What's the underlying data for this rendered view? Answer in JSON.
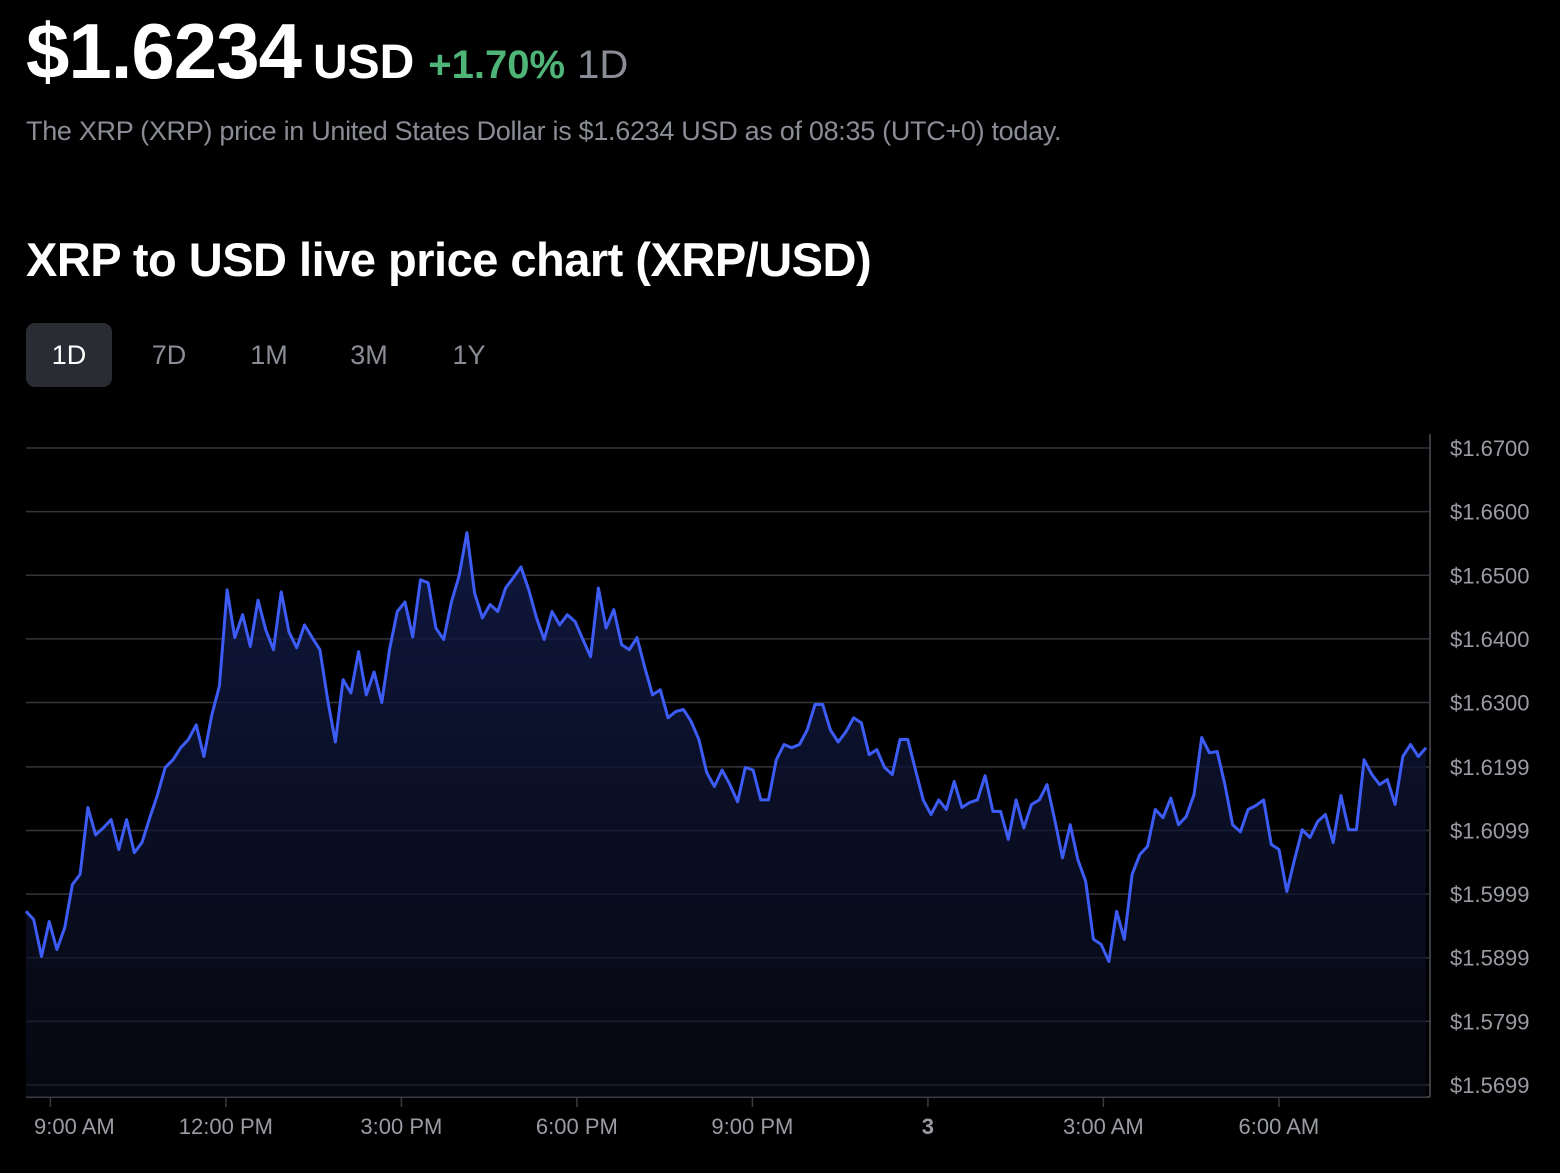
{
  "header": {
    "price": "$1.6234",
    "currency": "USD",
    "change": "+1.70%",
    "period": "1D",
    "description": "The XRP (XRP) price in United States Dollar is $1.6234 USD as of 08:35 (UTC+0) today."
  },
  "colors": {
    "accent_line": "#3d5cf5",
    "positive": "#4fb477",
    "muted": "#8a8d96"
  },
  "tabs": [
    {
      "label": "1D",
      "active": true
    },
    {
      "label": "7D",
      "active": false
    },
    {
      "label": "1M",
      "active": false
    },
    {
      "label": "3M",
      "active": false
    },
    {
      "label": "1Y",
      "active": false
    }
  ],
  "chart_data": {
    "type": "area",
    "title": "XRP to USD live price chart (XRP/USD)",
    "xlabel": "",
    "ylabel": "",
    "ylim": [
      1.5699,
      1.67
    ],
    "y_ticks": [
      "$1.6700",
      "$1.6600",
      "$1.6500",
      "$1.6400",
      "$1.6300",
      "$1.6199",
      "$1.6099",
      "$1.5999",
      "$1.5899",
      "$1.5799",
      "$1.5699"
    ],
    "y_tick_values": [
      1.67,
      1.66,
      1.65,
      1.64,
      1.63,
      1.6199,
      1.6099,
      1.5999,
      1.5899,
      1.5799,
      1.5699
    ],
    "x_ticks": [
      "9:00 AM",
      "12:00 PM",
      "3:00 PM",
      "6:00 PM",
      "9:00 PM",
      "3",
      "3:00 AM",
      "6:00 AM"
    ],
    "x_tick_hours": [
      9,
      12,
      15,
      18,
      21,
      24,
      27,
      30
    ],
    "x_range_hours": [
      8.583,
      32.583
    ],
    "grid": true,
    "series": [
      {
        "name": "XRP/USD",
        "values": [
          1.5972,
          1.5959,
          1.5901,
          1.5956,
          1.5912,
          1.5946,
          1.6014,
          1.603,
          1.6135,
          1.6092,
          1.6103,
          1.6116,
          1.6069,
          1.6116,
          1.6064,
          1.608,
          1.6119,
          1.6155,
          1.6198,
          1.621,
          1.6229,
          1.6242,
          1.6265,
          1.6215,
          1.6279,
          1.6326,
          1.6477,
          1.6402,
          1.6438,
          1.6388,
          1.6461,
          1.6414,
          1.6383,
          1.6474,
          1.6411,
          1.6386,
          1.6422,
          1.6402,
          1.6383,
          1.6304,
          1.6238,
          1.6336,
          1.6315,
          1.638,
          1.6312,
          1.6348,
          1.63,
          1.6383,
          1.6443,
          1.6458,
          1.6403,
          1.6493,
          1.6488,
          1.6417,
          1.6399,
          1.6458,
          1.6499,
          1.6567,
          1.6472,
          1.6433,
          1.6454,
          1.6443,
          1.648,
          1.6496,
          1.6513,
          1.6477,
          1.6433,
          1.6399,
          1.6443,
          1.6422,
          1.6438,
          1.6427,
          1.6399,
          1.6372,
          1.648,
          1.6417,
          1.6446,
          1.6391,
          1.6383,
          1.6402,
          1.6355,
          1.6312,
          1.632,
          1.6276,
          1.6286,
          1.6289,
          1.627,
          1.6242,
          1.619,
          1.6168,
          1.6194,
          1.6171,
          1.6144,
          1.6198,
          1.6194,
          1.6147,
          1.6147,
          1.621,
          1.6234,
          1.6229,
          1.6234,
          1.6257,
          1.6297,
          1.6297,
          1.6257,
          1.6238,
          1.6254,
          1.6276,
          1.6268,
          1.6218,
          1.6226,
          1.6198,
          1.6187,
          1.6242,
          1.6242,
          1.6194,
          1.6147,
          1.6124,
          1.6147,
          1.6132,
          1.6176,
          1.6135,
          1.6143,
          1.6147,
          1.6185,
          1.6129,
          1.6129,
          1.6085,
          1.6147,
          1.6103,
          1.614,
          1.6147,
          1.6171,
          1.6116,
          1.6056,
          1.6108,
          1.6053,
          1.6019,
          1.5928,
          1.592,
          1.5893,
          1.5972,
          1.5928,
          1.603,
          1.6061,
          1.6074,
          1.6132,
          1.6119,
          1.615,
          1.6108,
          1.6121,
          1.6155,
          1.6245,
          1.6221,
          1.6223,
          1.6171,
          1.6108,
          1.6097,
          1.6132,
          1.6138,
          1.6147,
          1.6077,
          1.6069,
          1.6003,
          1.6053,
          1.61,
          1.6088,
          1.6113,
          1.6124,
          1.608,
          1.6154,
          1.61,
          1.61,
          1.621,
          1.6187,
          1.6171,
          1.6179,
          1.614,
          1.6215,
          1.6234,
          1.6215,
          1.6229
        ]
      }
    ]
  }
}
